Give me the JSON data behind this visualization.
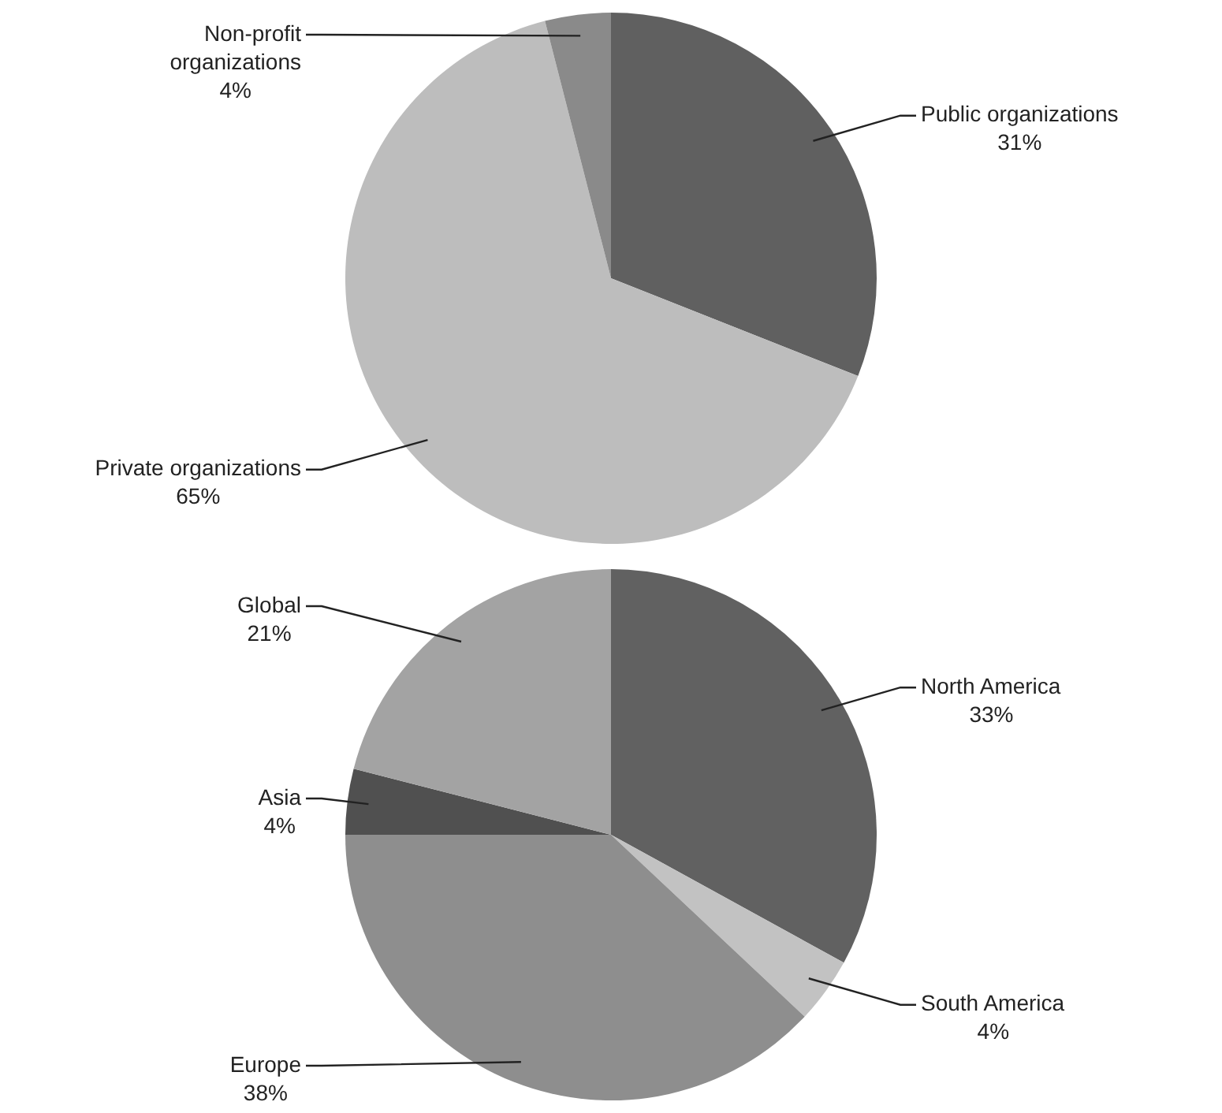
{
  "chart_data": [
    {
      "type": "pie",
      "categories": [
        "Public organizations",
        "Private organizations",
        "Non-profit organizations"
      ],
      "values": [
        31,
        65,
        4
      ],
      "colors": [
        "#606060",
        "#bdbdbd",
        "#8a8a8a"
      ],
      "value_labels": [
        "31%",
        "65%",
        "4%"
      ]
    },
    {
      "type": "pie",
      "categories": [
        "North America",
        "South America",
        "Europe",
        "Asia",
        "Global"
      ],
      "values": [
        33,
        4,
        38,
        4,
        21
      ],
      "colors": [
        "#616161",
        "#c2c2c2",
        "#8e8e8e",
        "#505050",
        "#a3a3a3"
      ],
      "value_labels": [
        "33%",
        "4%",
        "38%",
        "4%",
        "21%"
      ]
    }
  ]
}
